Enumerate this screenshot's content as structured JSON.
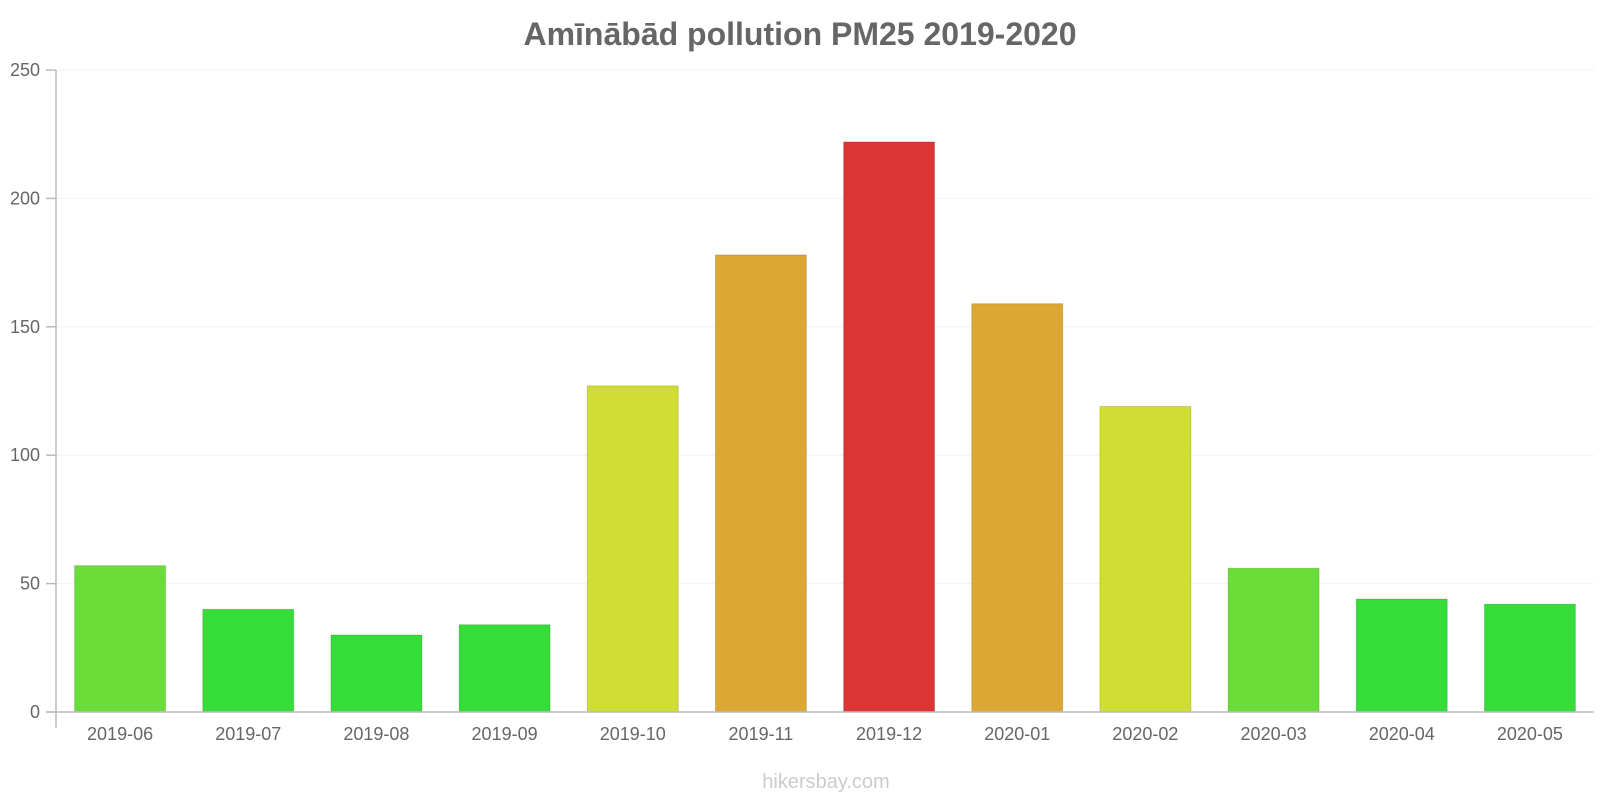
{
  "chart_data": {
    "type": "bar",
    "title": "Amīnābād pollution PM25 2019-2020",
    "categories": [
      "2019-06",
      "2019-07",
      "2019-08",
      "2019-09",
      "2019-10",
      "2019-11",
      "2019-12",
      "2020-01",
      "2020-02",
      "2020-03",
      "2020-04",
      "2020-05"
    ],
    "values": [
      57,
      40,
      30,
      34,
      127,
      178,
      222,
      159,
      119,
      56,
      44,
      42
    ],
    "colors": [
      "#6bdd39",
      "#35dd39",
      "#35dd39",
      "#35dd39",
      "#cfdd35",
      "#dba834",
      "#db3536",
      "#dba834",
      "#cfdd35",
      "#6bdd39",
      "#35dd39",
      "#35dd39"
    ],
    "ylim": [
      0,
      250
    ],
    "yticks": [
      0,
      50,
      100,
      150,
      200,
      250
    ],
    "xlabel": "",
    "ylabel": "",
    "grid": true,
    "legend": "none"
  },
  "watermark": "hikersbay.com"
}
